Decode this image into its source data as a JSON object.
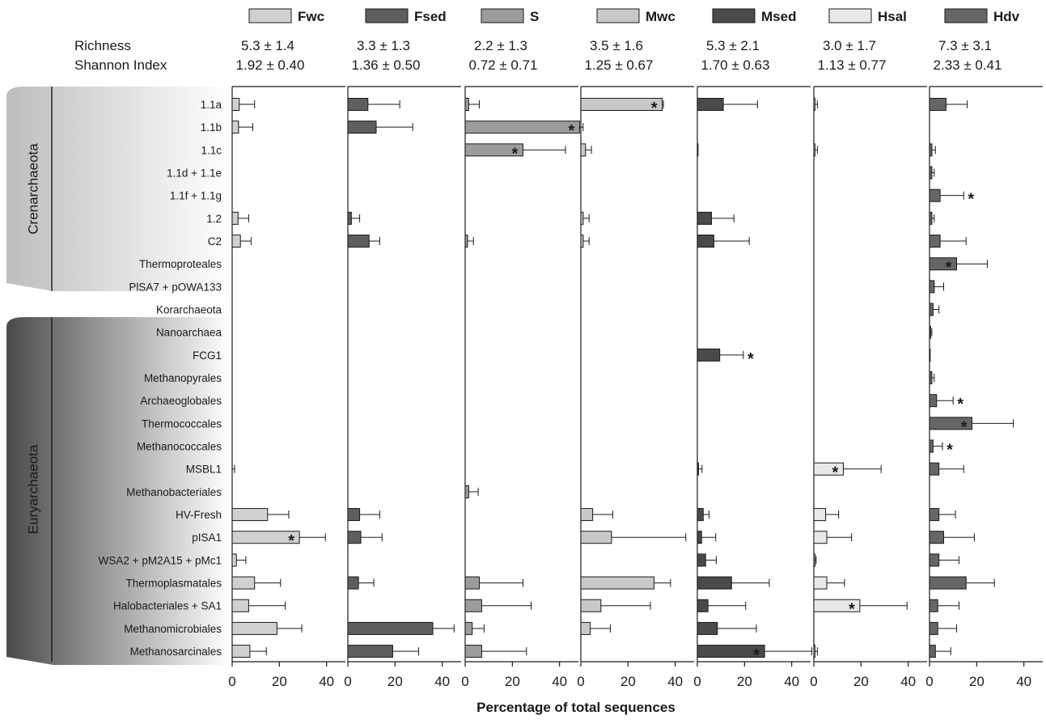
{
  "chart_data": {
    "type": "bar",
    "orientation": "horizontal",
    "xlabel": "Percentage of total sequences",
    "xlim": [
      0,
      48
    ],
    "xticks": [
      0,
      20,
      40
    ],
    "stats_labels": [
      "Richness",
      "Shannon Index"
    ],
    "groups": [
      {
        "name": "Crenarchaeota",
        "from": 0,
        "to": 9
      },
      {
        "name": "Euryarchaeota",
        "from": 10,
        "to": 24
      }
    ],
    "categories": [
      "1.1a",
      "1.1b",
      "1.1c",
      "1.1d + 1.1e",
      "1.1f + 1.1g",
      "1.2",
      "C2",
      "Thermoproteales",
      "PlSA7 + pOWA133",
      "Korarchaeota",
      "Nanoarchaea",
      "FCG1",
      "Methanopyrales",
      "Archaeoglobales",
      "Thermococcales",
      "Methanococcales",
      "MSBL1",
      "Methanobacteriales",
      "HV-Fresh",
      "pISA1",
      "WSA2 + pM2A15 + pMc1",
      "Thermoplasmatales",
      "Halobacteriales + SA1",
      "Methanomicrobiales",
      "Methanosarcinales"
    ],
    "series": [
      {
        "name": "Fwc",
        "color": "#d0d0d0",
        "richness": "5.3 ± 1.4",
        "shannon": "1.92 ± 0.40",
        "values": [
          3.0,
          2.7,
          0,
          0,
          0,
          2.5,
          3.5,
          0,
          0,
          0,
          0,
          0,
          0,
          0,
          0,
          0,
          0,
          0,
          15.0,
          28.5,
          1.8,
          9.5,
          7.0,
          19.0,
          7.5
        ],
        "errors": [
          6.5,
          6.0,
          0,
          0,
          0,
          4.5,
          4.5,
          0,
          0,
          0,
          0,
          0,
          0,
          0,
          0,
          0,
          1.0,
          0,
          9.0,
          11.0,
          4.0,
          11.0,
          15.5,
          10.5,
          7.0
        ],
        "stars": [
          19
        ]
      },
      {
        "name": "Fsed",
        "color": "#5e5e5e",
        "richness": "3.3 ± 1.3",
        "shannon": "1.36 ± 0.50",
        "values": [
          8.5,
          12.0,
          0,
          0,
          0,
          1.5,
          9.0,
          0,
          0,
          0,
          0,
          0,
          0,
          0,
          0,
          0,
          0,
          0,
          5.0,
          5.5,
          0,
          4.5,
          0,
          36.0,
          19.0
        ],
        "errors": [
          13.5,
          15.5,
          0,
          0,
          0,
          3.5,
          4.5,
          0,
          0,
          0,
          0,
          0,
          0,
          0,
          0,
          0,
          0,
          0,
          8.5,
          9.0,
          0,
          6.5,
          0,
          9.0,
          11.0
        ],
        "stars": []
      },
      {
        "name": "S",
        "color": "#9c9c9c",
        "richness": "2.2 ± 1.3",
        "shannon": "0.72 ± 0.71",
        "values": [
          1.5,
          48.5,
          24.5,
          0,
          0,
          0,
          1.0,
          0,
          0,
          0,
          0,
          0,
          0,
          0,
          0,
          0,
          0,
          1.5,
          0,
          0,
          0,
          6.0,
          7.0,
          3.0,
          7.0
        ],
        "errors": [
          4.5,
          1.5,
          18.0,
          0,
          0,
          0,
          2.5,
          0,
          0,
          0,
          0,
          0,
          0,
          0,
          0,
          0,
          0,
          4.0,
          0,
          0,
          0,
          18.5,
          21.0,
          5.0,
          19.0
        ],
        "stars": [
          1,
          2
        ]
      },
      {
        "name": "Mwc",
        "color": "#c8c8c8",
        "richness": "3.5 ± 1.6",
        "shannon": "1.25 ± 0.67",
        "values": [
          34.5,
          0,
          2.0,
          0,
          0,
          1.0,
          1.0,
          0,
          0,
          0,
          0,
          0,
          0,
          0,
          0,
          0,
          0,
          0,
          5.0,
          13.0,
          0,
          31.0,
          8.5,
          4.0,
          0
        ],
        "errors": [
          0.5,
          0,
          2.5,
          0,
          0,
          2.5,
          2.5,
          0,
          0,
          0,
          0,
          0,
          0,
          0,
          0,
          0,
          0,
          0,
          8.5,
          31.5,
          0,
          7.0,
          21.0,
          8.5,
          0
        ],
        "stars": [
          0
        ]
      },
      {
        "name": "Msed",
        "color": "#4a4a4a",
        "richness": "5.3 ± 2.1",
        "shannon": "1.70 ± 0.63",
        "values": [
          11.0,
          0,
          0.3,
          0,
          0,
          6.0,
          7.0,
          0,
          0,
          0,
          0,
          9.5,
          0,
          0,
          0,
          0,
          0.5,
          0,
          2.5,
          1.8,
          3.5,
          14.5,
          4.5,
          8.5,
          28.5
        ],
        "errors": [
          14.5,
          0,
          0,
          0,
          0,
          9.5,
          15.0,
          0,
          0,
          0,
          0,
          10.0,
          0,
          0,
          0,
          0,
          1.5,
          0,
          2.5,
          6.0,
          4.5,
          16.0,
          16.0,
          16.5,
          20.0
        ],
        "stars": [
          11,
          24
        ]
      },
      {
        "name": "Hsal",
        "color": "#e8e8e8",
        "richness": "3.0 ± 1.7",
        "shannon": "1.13 ± 0.77",
        "values": [
          0.5,
          0,
          0.5,
          0,
          0,
          0,
          0,
          0,
          0,
          0,
          0,
          0,
          0,
          0,
          0,
          0,
          12.5,
          0,
          5.0,
          5.5,
          0.5,
          5.5,
          19.5,
          0,
          0.5
        ],
        "errors": [
          1.0,
          0,
          1.0,
          0,
          0,
          0,
          0,
          0,
          0,
          0,
          0,
          0,
          0,
          0,
          0,
          0,
          16.0,
          0,
          5.5,
          10.5,
          0.5,
          7.5,
          20.0,
          0,
          1.0
        ],
        "stars": [
          16,
          22
        ]
      },
      {
        "name": "Hdv",
        "color": "#666666",
        "richness": "7.3 ± 3.1",
        "shannon": "2.33 ± 0.41",
        "values": [
          7.0,
          0,
          1.0,
          1.0,
          4.5,
          1.0,
          4.5,
          11.5,
          2.0,
          1.5,
          0.5,
          0.3,
          1.0,
          3.0,
          18.0,
          1.5,
          4.0,
          0,
          4.0,
          6.0,
          4.0,
          15.5,
          3.5,
          3.5,
          2.5
        ],
        "errors": [
          9.0,
          0,
          1.5,
          1.0,
          10.0,
          1.0,
          11.0,
          13.0,
          4.0,
          2.5,
          0.5,
          0,
          1.0,
          7.0,
          17.5,
          4.0,
          10.5,
          0,
          7.0,
          13.0,
          8.5,
          12.0,
          9.0,
          8.0,
          6.5
        ],
        "stars": [
          4,
          7,
          13,
          14,
          15
        ]
      }
    ]
  }
}
